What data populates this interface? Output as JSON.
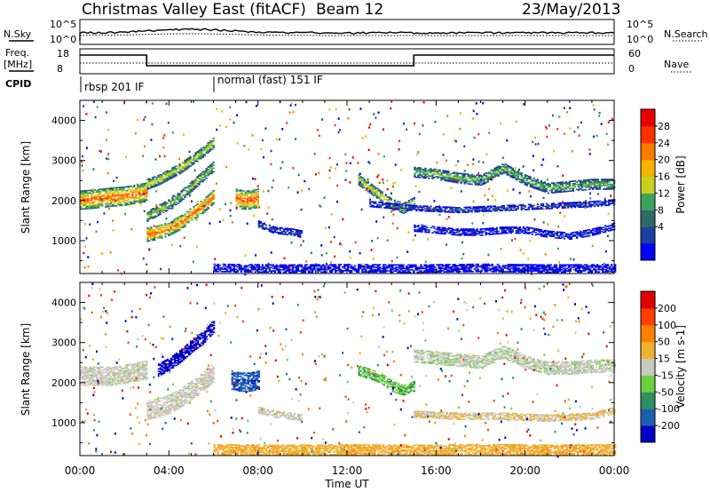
{
  "header": {
    "title": "Christmas Valley East (fitACF)",
    "beam": "Beam 12",
    "date": "23/May/2013"
  },
  "status_panels": {
    "nsky_label": "N.Sky",
    "nsearch_label": "N.Search",
    "noise_ticks": [
      "10^5",
      "10^0"
    ],
    "freq_label_1": "Freq.",
    "freq_label_2": "[MHz]",
    "freq_ticks": [
      "18",
      "8"
    ],
    "nave_label": "Nave",
    "nave_ticks": [
      "60",
      "0"
    ],
    "cpid_label": "CPID",
    "cpid_segments": [
      {
        "label": "rbsp 201 IF",
        "start_hour": 0,
        "end_hour": 6
      },
      {
        "label": "normal (fast) 151 IF",
        "start_hour": 6,
        "end_hour": 24
      }
    ]
  },
  "time_axis": {
    "label": "Time UT",
    "ticks": [
      "00:00",
      "04:00",
      "08:00",
      "12:00",
      "16:00",
      "20:00",
      "00:00"
    ]
  },
  "chart_data": [
    {
      "type": "heatmap",
      "name": "power",
      "ylabel": "Slant Range [km]",
      "yticks": [
        "4000",
        "3000",
        "2000",
        "1000"
      ],
      "xlim_hours": [
        0,
        24
      ],
      "ylim_km": [
        180,
        4500
      ],
      "colorbar_label": "Power [dB]",
      "colorbar_ticks": [
        "28",
        "24",
        "20",
        "16",
        "12",
        "8",
        "4"
      ],
      "colors": [
        "#0000ff",
        "#1e3fa0",
        "#2e6a6a",
        "#3aa55a",
        "#c8d020",
        "#f6b400",
        "#ff7a00",
        "#ff3000",
        "#e80000"
      ],
      "echo_bands": [
        {
          "t": [
            0,
            0.5,
            1,
            1.5,
            2,
            2.5,
            3
          ],
          "r": [
            2000,
            2020,
            2050,
            2080,
            2100,
            2150,
            2200
          ],
          "width_km": 450,
          "level": 0.8
        },
        {
          "t": [
            3,
            3.5,
            4,
            4.5,
            5,
            5.5,
            6
          ],
          "r": [
            1150,
            1200,
            1300,
            1450,
            1650,
            1850,
            2100
          ],
          "width_km": 350,
          "level": 0.8
        },
        {
          "t": [
            3,
            3.5,
            4,
            4.5,
            5,
            5.5,
            6
          ],
          "r": [
            1600,
            1750,
            1900,
            2100,
            2350,
            2600,
            2850
          ],
          "width_km": 250,
          "level": 0.5
        },
        {
          "t": [
            3,
            3.5,
            4,
            4.5,
            5,
            5.5,
            6
          ],
          "r": [
            2400,
            2500,
            2650,
            2800,
            3000,
            3200,
            3450
          ],
          "width_km": 250,
          "level": 0.55
        },
        {
          "t": [
            7,
            7.3,
            7.6,
            8
          ],
          "r": [
            2050,
            2000,
            2000,
            2050
          ],
          "width_km": 450,
          "level": 0.85
        },
        {
          "t": [
            8,
            8.7,
            9.5,
            10
          ],
          "r": [
            1400,
            1250,
            1200,
            1150
          ],
          "width_km": 150,
          "level": 0.2
        },
        {
          "t": [
            12.5,
            13,
            13.5,
            14,
            14.5,
            15
          ],
          "r": [
            2500,
            2300,
            2100,
            1900,
            1800,
            1950
          ],
          "width_km": 250,
          "level": 0.6
        },
        {
          "t": [
            15,
            16,
            17,
            18,
            19,
            20,
            21,
            22,
            23,
            24
          ],
          "r": [
            2700,
            2650,
            2550,
            2500,
            2800,
            2500,
            2300,
            2350,
            2400,
            2400
          ],
          "width_km": 250,
          "level": 0.45
        },
        {
          "t": [
            15,
            16,
            17,
            18,
            19,
            20,
            21,
            22,
            23,
            24
          ],
          "r": [
            1300,
            1250,
            1200,
            1200,
            1250,
            1250,
            1150,
            1100,
            1200,
            1350
          ],
          "width_km": 150,
          "level": 0.15
        },
        {
          "t": [
            13,
            15,
            17,
            19,
            21,
            23,
            24
          ],
          "r": [
            1900,
            1800,
            1750,
            1800,
            1850,
            1900,
            1950
          ],
          "width_km": 120,
          "level": 0.2
        },
        {
          "t": [
            6,
            9,
            12,
            15,
            18,
            21,
            24
          ],
          "r": [
            320,
            300,
            310,
            300,
            320,
            300,
            310
          ],
          "width_km": 200,
          "level": 0.1
        }
      ]
    },
    {
      "type": "heatmap",
      "name": "velocity",
      "ylabel": "Slant Range [km]",
      "yticks": [
        "4000",
        "3000",
        "2000",
        "1000"
      ],
      "xlim_hours": [
        0,
        24
      ],
      "ylim_km": [
        180,
        4500
      ],
      "colorbar_label": "Velocity [m s-1]",
      "colorbar_ticks": [
        "200",
        "100",
        "50",
        "15",
        "-15",
        "-50",
        "-100",
        "-200"
      ],
      "colors": [
        "#0000c8",
        "#1c5fb0",
        "#2f8f5f",
        "#70d040",
        "#c8c8c0",
        "#f0b030",
        "#ff8000",
        "#ff4000",
        "#e00000"
      ],
      "echo_bands": [
        {
          "t": [
            0,
            0.5,
            1,
            1.5,
            2,
            2.5,
            3
          ],
          "r": [
            2150,
            2150,
            2150,
            2150,
            2200,
            2250,
            2300
          ],
          "width_km": 450,
          "level": 0.5
        },
        {
          "t": [
            3,
            3.5,
            4,
            4.5,
            5,
            5.5,
            6
          ],
          "r": [
            1300,
            1350,
            1450,
            1600,
            1800,
            2000,
            2250
          ],
          "width_km": 450,
          "level": 0.5
        },
        {
          "t": [
            3.5,
            4,
            4.5,
            5,
            5.5,
            6
          ],
          "r": [
            2300,
            2450,
            2650,
            2900,
            3100,
            3400
          ],
          "width_km": 300,
          "level": 0.02
        },
        {
          "t": [
            6.8,
            7.2,
            7.6,
            8
          ],
          "r": [
            2050,
            2000,
            2000,
            2050
          ],
          "width_km": 450,
          "level": 0.15
        },
        {
          "t": [
            8,
            8.7,
            9.5,
            10
          ],
          "r": [
            1300,
            1200,
            1150,
            1100
          ],
          "width_km": 150,
          "level": 0.5
        },
        {
          "t": [
            12.5,
            13,
            13.5,
            14,
            14.5,
            15
          ],
          "r": [
            2300,
            2200,
            2100,
            1900,
            1800,
            1900
          ],
          "width_km": 250,
          "level": 0.35
        },
        {
          "t": [
            15,
            16,
            17,
            18,
            19,
            20,
            21,
            22,
            23,
            24
          ],
          "r": [
            2650,
            2600,
            2550,
            2500,
            2750,
            2500,
            2350,
            2350,
            2400,
            2400
          ],
          "width_km": 300,
          "level": 0.48
        },
        {
          "t": [
            15,
            17,
            19,
            21,
            23,
            24
          ],
          "r": [
            1200,
            1150,
            1150,
            1100,
            1150,
            1300
          ],
          "width_km": 150,
          "level": 0.55
        },
        {
          "t": [
            6,
            9,
            12,
            15,
            18,
            21,
            24
          ],
          "r": [
            320,
            310,
            320,
            310,
            330,
            310,
            320
          ],
          "width_km": 250,
          "level": 0.62
        }
      ]
    }
  ]
}
